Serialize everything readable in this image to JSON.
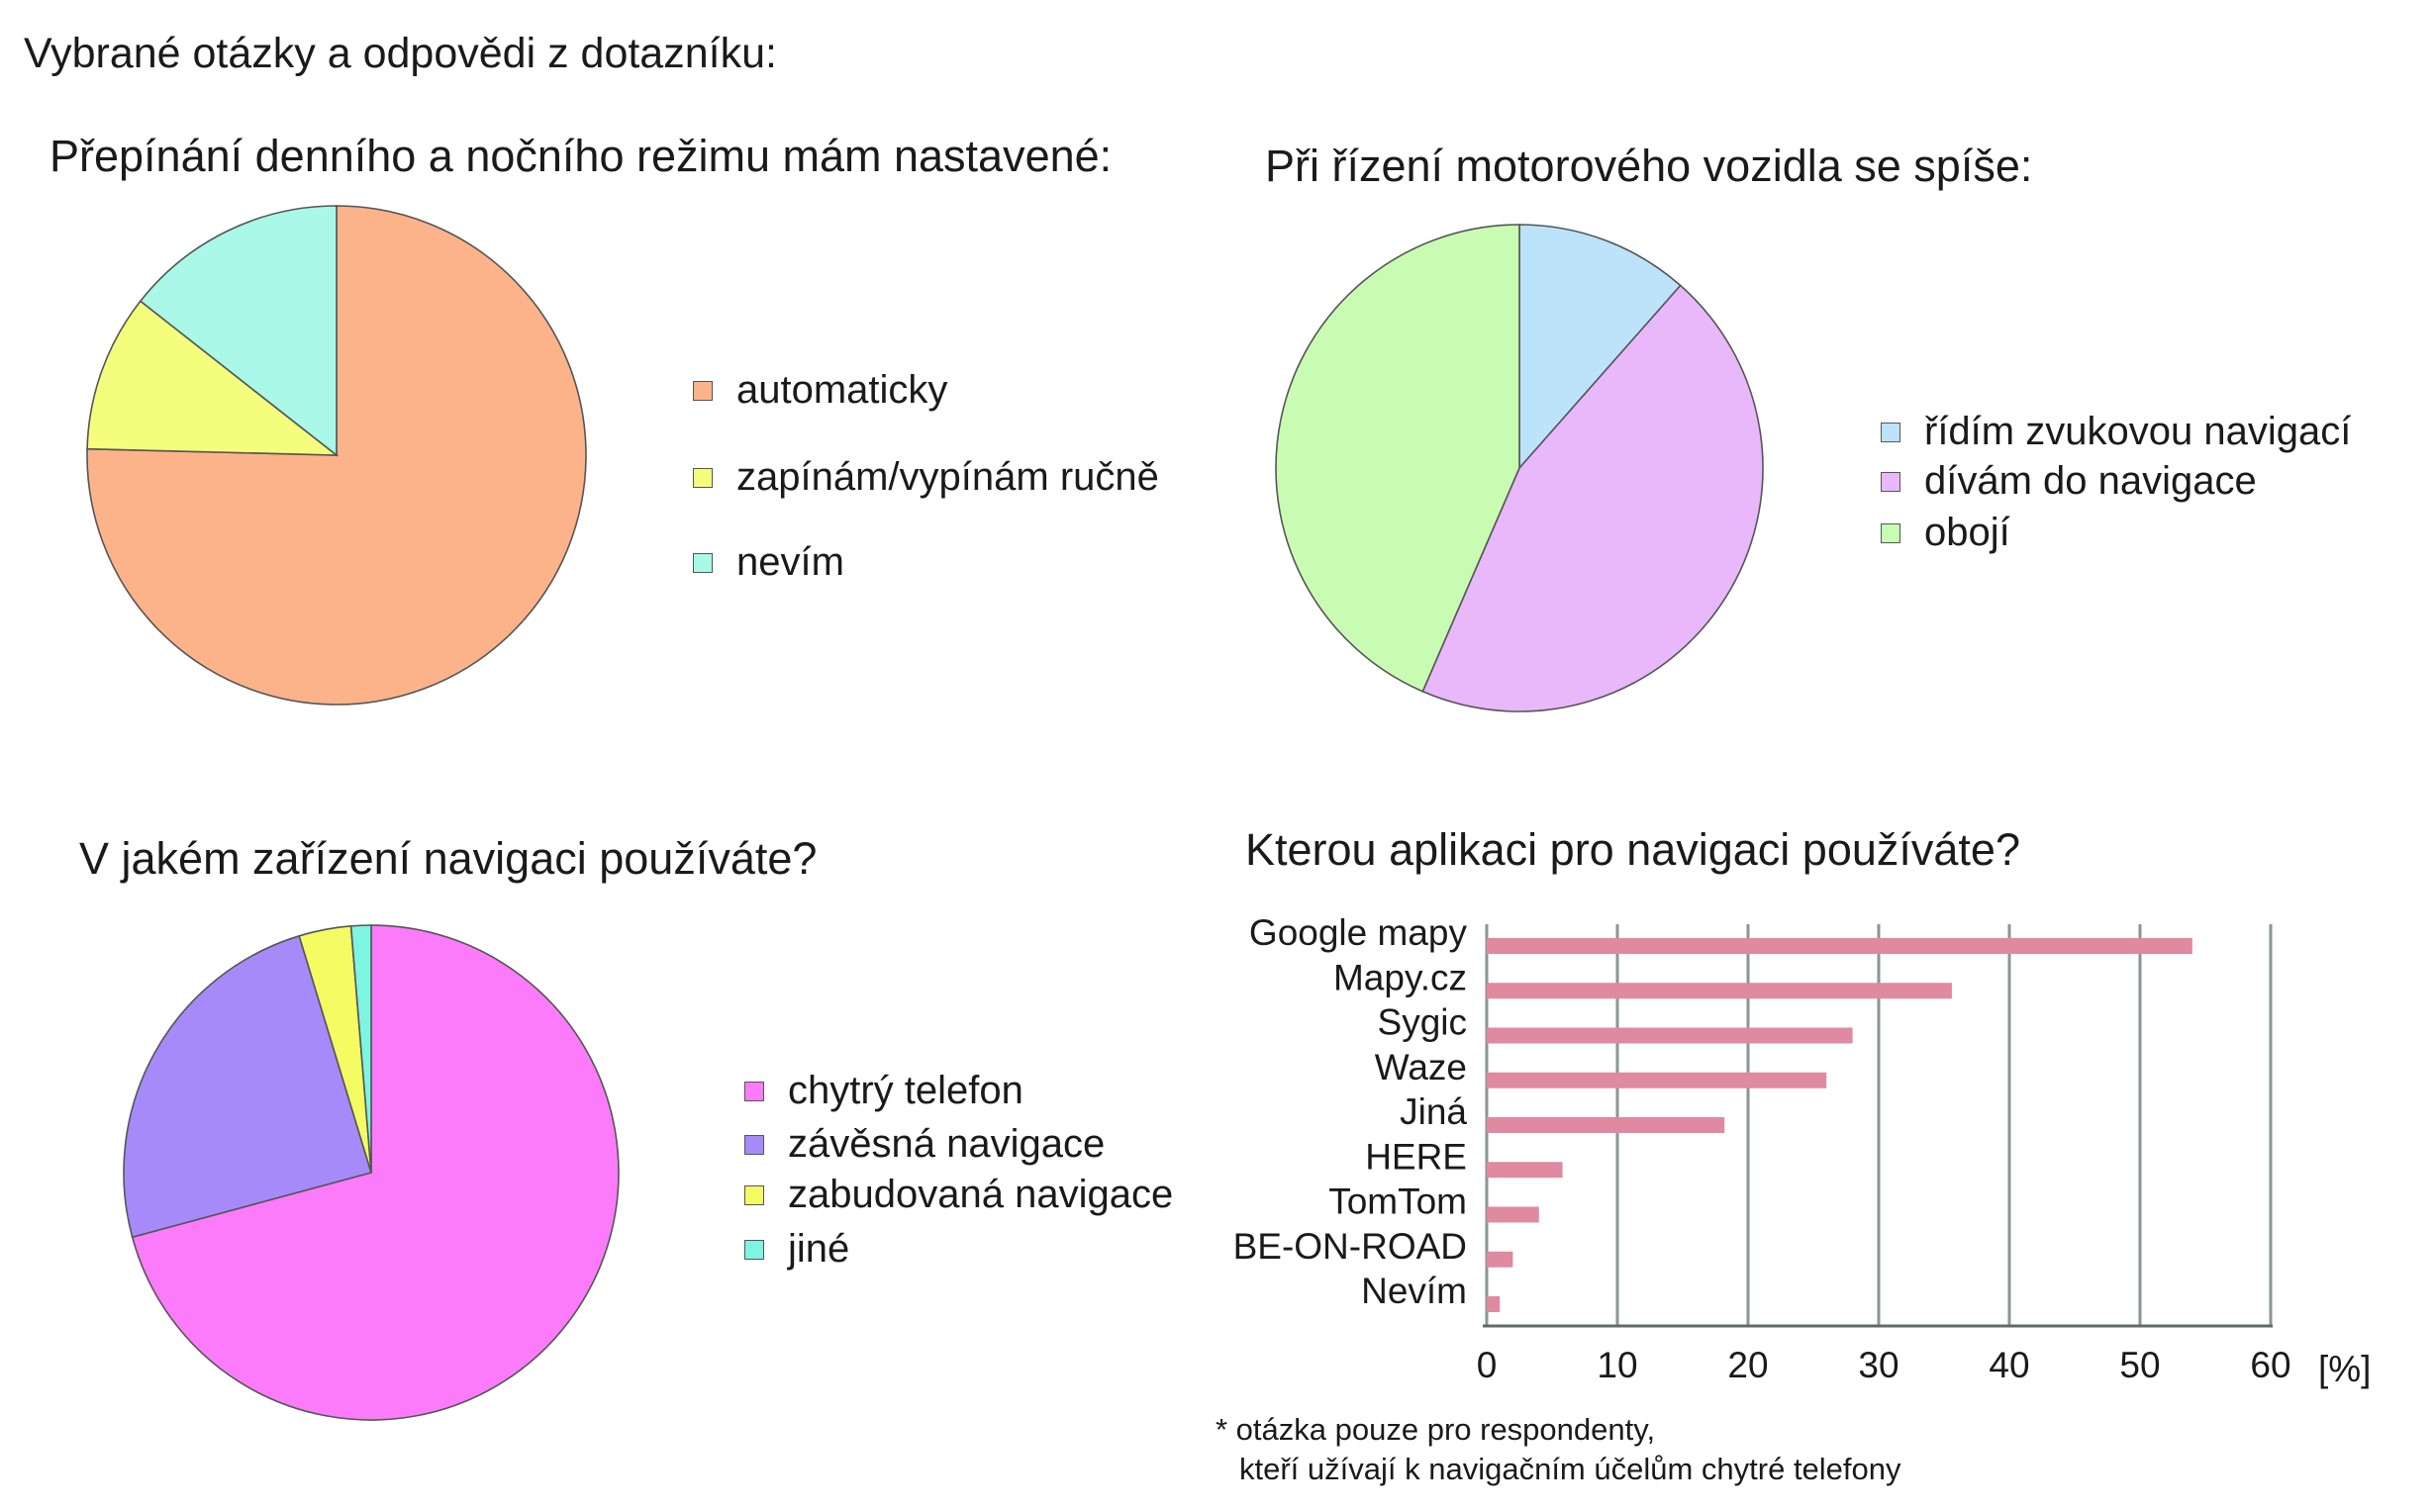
{
  "page": {
    "title": "Vybrané otázky a odpovědi z dotazníku:",
    "footnote_line1": "* otázka pouze pro respondenty,",
    "footnote_line2": "kteří užívají k navigačním účelům chytré telefony"
  },
  "chart_data": [
    {
      "type": "pie",
      "title": "Přepínání denního a nočního režimu mám nastavené:",
      "labels": [
        "automaticky",
        "zapínám/vypínám ručně",
        "nevím"
      ],
      "values": [
        75.4,
        10.2,
        14.4
      ],
      "colors": [
        "#fdb38a",
        "#f5fd7c",
        "#aaf8e7"
      ]
    },
    {
      "type": "pie",
      "title": "Při řízení motorového vozidla se spíše:",
      "labels": [
        "řídím zvukovou navigací",
        "dívám do navigace",
        "obojí"
      ],
      "values": [
        11.5,
        45,
        43.5
      ],
      "colors": [
        "#bde3fb",
        "#e8b8fb",
        "#c9fcb3"
      ]
    },
    {
      "type": "pie",
      "title": "V jakém zařízení navigaci používáte?",
      "labels": [
        "chytrý telefon",
        "závěsná navigace",
        "zabudovaná navigace",
        "jiné"
      ],
      "values": [
        70.8,
        24.5,
        3.4,
        1.3
      ],
      "colors": [
        "#fc7bfa",
        "#a68afa",
        "#f5fc63",
        "#7ef5e0"
      ]
    },
    {
      "type": "bar",
      "orientation": "horizontal",
      "title": "Kterou aplikaci pro navigaci používáte?",
      "categories": [
        "Google mapy",
        "Mapy.cz",
        "Sygic",
        "Waze",
        "Jiná",
        "HERE",
        "TomTom",
        "BE-ON-ROAD",
        "Nevím"
      ],
      "values": [
        54,
        35.6,
        28,
        26,
        18.2,
        5.8,
        4,
        2,
        1
      ],
      "xlim": [
        0,
        60
      ],
      "xticks": [
        0,
        10,
        20,
        30,
        40,
        50,
        60
      ],
      "xlabel": "[%]",
      "grid": true,
      "bar_color": "#df8aa0"
    }
  ]
}
